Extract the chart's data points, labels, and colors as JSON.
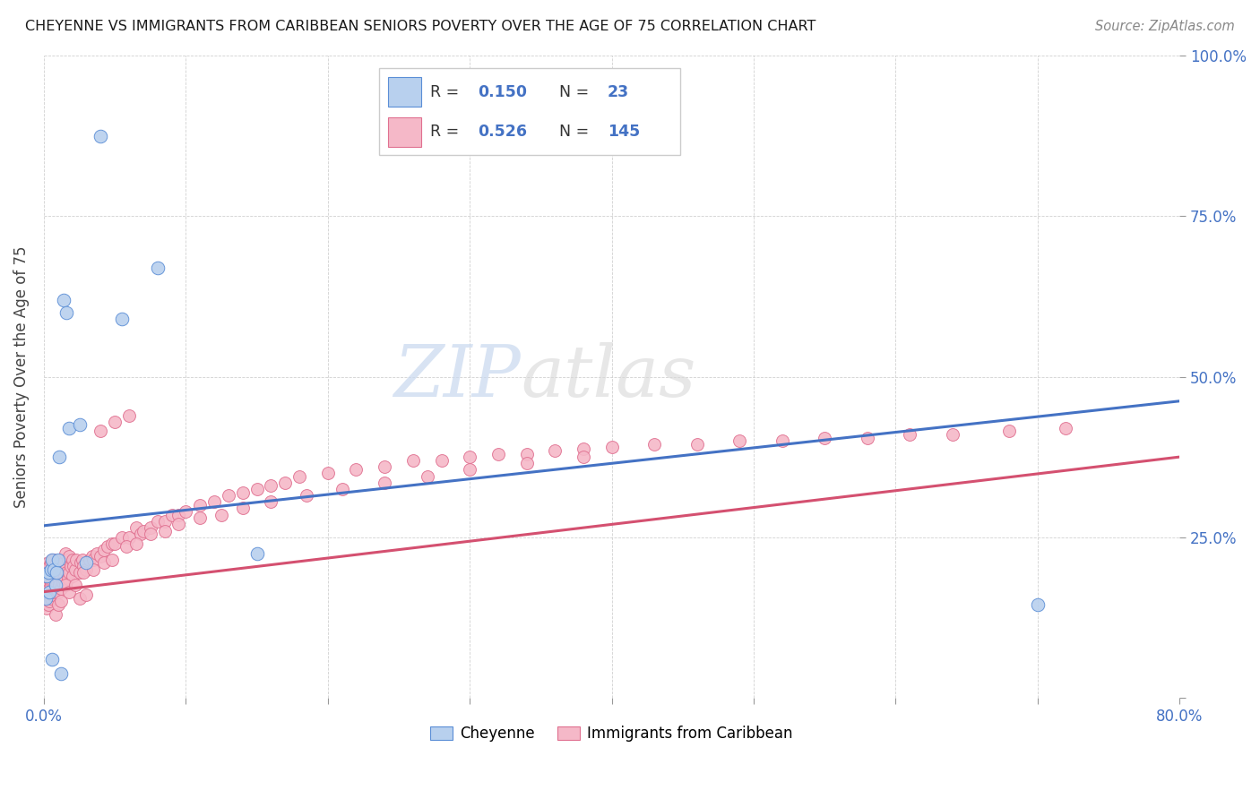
{
  "title": "CHEYENNE VS IMMIGRANTS FROM CARIBBEAN SENIORS POVERTY OVER THE AGE OF 75 CORRELATION CHART",
  "source": "Source: ZipAtlas.com",
  "ylabel": "Seniors Poverty Over the Age of 75",
  "ytick_labels": [
    "",
    "25.0%",
    "50.0%",
    "75.0%",
    "100.0%"
  ],
  "ytick_values": [
    0.0,
    0.25,
    0.5,
    0.75,
    1.0
  ],
  "xtick_labels": [
    "0.0%",
    "",
    "",
    "",
    "",
    "",
    "",
    "",
    "80.0%"
  ],
  "xtick_values": [
    0.0,
    0.1,
    0.2,
    0.3,
    0.4,
    0.5,
    0.6,
    0.7,
    0.8
  ],
  "xlim": [
    0.0,
    0.8
  ],
  "ylim": [
    0.0,
    1.0
  ],
  "r_cheyenne": 0.15,
  "n_cheyenne": 23,
  "r_caribbean": 0.526,
  "n_caribbean": 145,
  "color_cheyenne_fill": "#b8d0ee",
  "color_cheyenne_edge": "#5b8ed6",
  "color_cheyenne_line": "#4472c4",
  "color_caribbean_fill": "#f5b8c8",
  "color_caribbean_edge": "#e07090",
  "color_caribbean_line": "#d45070",
  "color_text_blue": "#4472c4",
  "chey_line_x0": 0.0,
  "chey_line_y0": 0.268,
  "chey_line_x1": 0.8,
  "chey_line_y1": 0.462,
  "carib_line_x0": 0.0,
  "carib_line_y0": 0.165,
  "carib_line_x1": 0.8,
  "carib_line_y1": 0.375,
  "cheyenne_x": [
    0.001,
    0.002,
    0.003,
    0.004,
    0.005,
    0.006,
    0.006,
    0.007,
    0.008,
    0.009,
    0.01,
    0.011,
    0.012,
    0.014,
    0.016,
    0.018,
    0.025,
    0.03,
    0.04,
    0.055,
    0.08,
    0.15,
    0.7
  ],
  "cheyenne_y": [
    0.155,
    0.19,
    0.195,
    0.165,
    0.2,
    0.06,
    0.215,
    0.2,
    0.175,
    0.195,
    0.215,
    0.375,
    0.038,
    0.62,
    0.6,
    0.42,
    0.425,
    0.21,
    0.875,
    0.59,
    0.67,
    0.225,
    0.145
  ],
  "caribbean_x": [
    0.001,
    0.001,
    0.001,
    0.002,
    0.002,
    0.002,
    0.002,
    0.003,
    0.003,
    0.003,
    0.003,
    0.003,
    0.004,
    0.004,
    0.004,
    0.004,
    0.005,
    0.005,
    0.005,
    0.005,
    0.006,
    0.006,
    0.006,
    0.006,
    0.007,
    0.007,
    0.007,
    0.007,
    0.008,
    0.008,
    0.008,
    0.009,
    0.009,
    0.009,
    0.01,
    0.01,
    0.01,
    0.011,
    0.011,
    0.012,
    0.012,
    0.012,
    0.013,
    0.013,
    0.014,
    0.014,
    0.015,
    0.015,
    0.015,
    0.016,
    0.017,
    0.017,
    0.018,
    0.018,
    0.019,
    0.02,
    0.02,
    0.021,
    0.022,
    0.023,
    0.025,
    0.026,
    0.027,
    0.028,
    0.03,
    0.032,
    0.034,
    0.035,
    0.037,
    0.04,
    0.042,
    0.045,
    0.048,
    0.05,
    0.055,
    0.06,
    0.065,
    0.068,
    0.07,
    0.075,
    0.08,
    0.085,
    0.09,
    0.095,
    0.1,
    0.11,
    0.12,
    0.13,
    0.14,
    0.15,
    0.16,
    0.17,
    0.18,
    0.2,
    0.22,
    0.24,
    0.26,
    0.28,
    0.3,
    0.32,
    0.34,
    0.36,
    0.38,
    0.4,
    0.43,
    0.46,
    0.49,
    0.52,
    0.55,
    0.58,
    0.61,
    0.64,
    0.68,
    0.72,
    0.04,
    0.05,
    0.06,
    0.025,
    0.03,
    0.015,
    0.008,
    0.01,
    0.012,
    0.018,
    0.022,
    0.028,
    0.035,
    0.042,
    0.048,
    0.058,
    0.065,
    0.075,
    0.085,
    0.095,
    0.11,
    0.125,
    0.14,
    0.16,
    0.185,
    0.21,
    0.24,
    0.27,
    0.3,
    0.34,
    0.38
  ],
  "caribbean_y": [
    0.145,
    0.165,
    0.185,
    0.14,
    0.155,
    0.17,
    0.195,
    0.145,
    0.16,
    0.175,
    0.195,
    0.21,
    0.15,
    0.17,
    0.185,
    0.205,
    0.155,
    0.175,
    0.19,
    0.21,
    0.16,
    0.18,
    0.195,
    0.215,
    0.165,
    0.18,
    0.2,
    0.215,
    0.17,
    0.185,
    0.205,
    0.175,
    0.195,
    0.21,
    0.165,
    0.185,
    0.205,
    0.175,
    0.2,
    0.17,
    0.19,
    0.215,
    0.18,
    0.2,
    0.185,
    0.21,
    0.175,
    0.2,
    0.225,
    0.195,
    0.185,
    0.215,
    0.195,
    0.22,
    0.205,
    0.19,
    0.215,
    0.205,
    0.2,
    0.215,
    0.195,
    0.21,
    0.215,
    0.205,
    0.2,
    0.215,
    0.22,
    0.215,
    0.225,
    0.22,
    0.23,
    0.235,
    0.24,
    0.24,
    0.25,
    0.25,
    0.265,
    0.255,
    0.26,
    0.265,
    0.275,
    0.275,
    0.285,
    0.285,
    0.29,
    0.3,
    0.305,
    0.315,
    0.32,
    0.325,
    0.33,
    0.335,
    0.345,
    0.35,
    0.355,
    0.36,
    0.37,
    0.37,
    0.375,
    0.38,
    0.38,
    0.385,
    0.388,
    0.39,
    0.395,
    0.395,
    0.4,
    0.4,
    0.405,
    0.405,
    0.41,
    0.41,
    0.415,
    0.42,
    0.415,
    0.43,
    0.44,
    0.155,
    0.16,
    0.175,
    0.13,
    0.145,
    0.15,
    0.165,
    0.175,
    0.195,
    0.2,
    0.21,
    0.215,
    0.235,
    0.24,
    0.255,
    0.26,
    0.27,
    0.28,
    0.285,
    0.295,
    0.305,
    0.315,
    0.325,
    0.335,
    0.345,
    0.355,
    0.365,
    0.375
  ]
}
